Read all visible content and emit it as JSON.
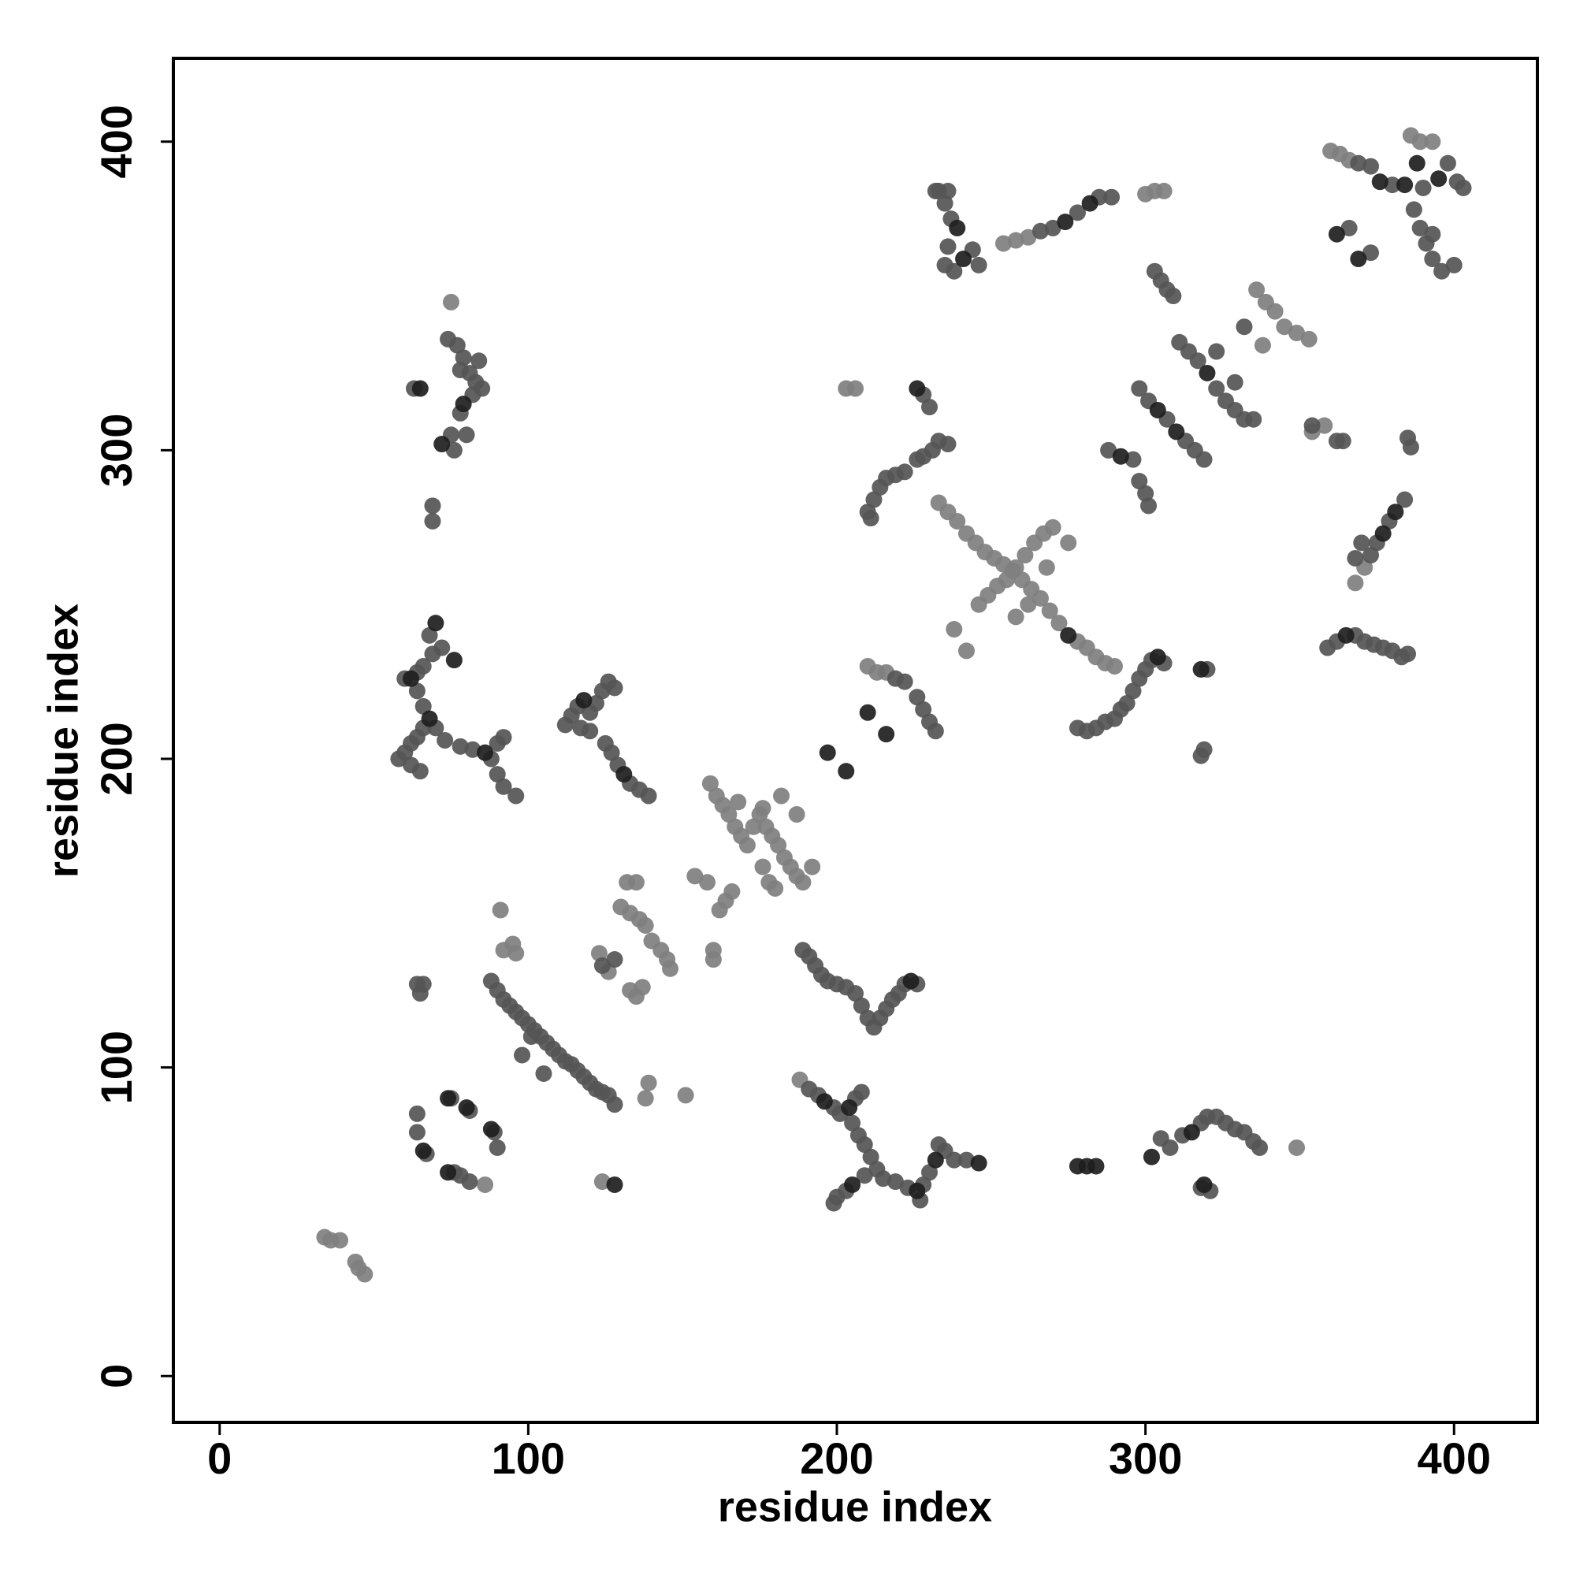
{
  "chart_data": {
    "type": "scatter",
    "xlabel": "residue index",
    "ylabel": "residue index",
    "xlim": [
      -15,
      427
    ],
    "ylim": [
      -15,
      427
    ],
    "xticks": [
      0,
      100,
      200,
      300,
      400
    ],
    "yticks": [
      0,
      100,
      200,
      300,
      400
    ],
    "series": [
      {
        "color": "#7f7f7f",
        "x": [
          34,
          36,
          39,
          44,
          45,
          47,
          132,
          135,
          130,
          133,
          136,
          138,
          140,
          143,
          145,
          146,
          133,
          135,
          137,
          139,
          138,
          151,
          124,
          159,
          161,
          163,
          165,
          167,
          169,
          171,
          173,
          175,
          177,
          179,
          181,
          183,
          185,
          187,
          189,
          192,
          176,
          178,
          180,
          166,
          164,
          162,
          158,
          154,
          160,
          160,
          187,
          182,
          176,
          168,
          233,
          236,
          239,
          242,
          245,
          248,
          251,
          254,
          257,
          260,
          263,
          266,
          269,
          272,
          278,
          281,
          284,
          287,
          290,
          238,
          242,
          246,
          249,
          252,
          255,
          258,
          261,
          264,
          267,
          270,
          275,
          268,
          262,
          258,
          336,
          339,
          342,
          345,
          349,
          353,
          338,
          91,
          92,
          95,
          96,
          203,
          206,
          210,
          213,
          216,
          254,
          258,
          262,
          360,
          363,
          366,
          386,
          389,
          393,
          368,
          371,
          354,
          358,
          86,
          75,
          349,
          300,
          303,
          306,
          188,
          123,
          126
        ],
        "y": [
          45,
          44,
          44,
          37,
          35,
          33,
          160,
          160,
          152,
          150,
          148,
          146,
          141,
          138,
          135,
          132,
          125,
          123,
          126,
          95,
          90,
          91,
          63,
          192,
          188,
          185,
          182,
          178,
          175,
          172,
          178,
          182,
          178,
          175,
          172,
          168,
          165,
          162,
          160,
          165,
          165,
          160,
          158,
          157,
          154,
          151,
          160,
          162,
          135,
          138,
          182,
          188,
          184,
          186,
          283,
          280,
          277,
          273,
          270,
          267,
          265,
          263,
          261,
          258,
          255,
          252,
          248,
          244,
          238,
          236,
          233,
          231,
          230,
          242,
          235,
          250,
          253,
          256,
          258,
          262,
          266,
          270,
          273,
          275,
          270,
          262,
          250,
          246,
          352,
          348,
          345,
          340,
          338,
          336,
          334,
          151,
          138,
          140,
          137,
          320,
          320,
          230,
          228,
          228,
          367,
          368,
          369,
          397,
          396,
          394,
          402,
          400,
          400,
          257,
          262,
          306,
          308,
          62,
          348,
          74,
          383,
          384,
          384,
          96,
          137,
          131
        ]
      },
      {
        "color": "#555555",
        "x": [
          64,
          64,
          67,
          75,
          81,
          89,
          90,
          76,
          78,
          81,
          88,
          90,
          92,
          94,
          96,
          98,
          100,
          102,
          104,
          106,
          108,
          110,
          112,
          114,
          116,
          118,
          120,
          122,
          124,
          126,
          128,
          98,
          105,
          101,
          64,
          65,
          66,
          124,
          128,
          189,
          191,
          193,
          195,
          197,
          200,
          203,
          206,
          208,
          210,
          212,
          214,
          216,
          218,
          220,
          222,
          226,
          191,
          194,
          199,
          201,
          206,
          208,
          205,
          207,
          209,
          211,
          213,
          209,
          203,
          200,
          199,
          215,
          219,
          223,
          228,
          230,
          235,
          238,
          242,
          227,
          233,
          305,
          308,
          312,
          318,
          320,
          323,
          326,
          329,
          332,
          335,
          337,
          321,
          318,
          58,
          60,
          62,
          64,
          66,
          70,
          66,
          64,
          64,
          66,
          69,
          72,
          68,
          60,
          62,
          65,
          73,
          78,
          82,
          88,
          90,
          92,
          90,
          92,
          96,
          112,
          114,
          116,
          120,
          122,
          124,
          126,
          128,
          125,
          127,
          129,
          133,
          136,
          139,
          117,
          120,
          63,
          74,
          77,
          79,
          81,
          83,
          85,
          78,
          75,
          76,
          69,
          69,
          80,
          82,
          78,
          84,
          219,
          222,
          226,
          228,
          230,
          232,
          210,
          212,
          214,
          216,
          219,
          222,
          211,
          228,
          230,
          228,
          231,
          233,
          236,
          226,
          278,
          281,
          284,
          287,
          290,
          292,
          294,
          296,
          298,
          300,
          302,
          306,
          320,
          319,
          318,
          232,
          235,
          237,
          236,
          235,
          238,
          244,
          246,
          233,
          236,
          266,
          270,
          278,
          285,
          289,
          303,
          305,
          307,
          309,
          298,
          301,
          307,
          313,
          316,
          319,
          288,
          296,
          298,
          300,
          301,
          311,
          314,
          317,
          323,
          326,
          329,
          332,
          335,
          323,
          329,
          332,
          362,
          364,
          354,
          369,
          373,
          380,
          398,
          401,
          403,
          390,
          387,
          389,
          391,
          393,
          396,
          400,
          393,
          366,
          373,
          359,
          362,
          368,
          371,
          374,
          377,
          380,
          383,
          385,
          373,
          375,
          379,
          384,
          386,
          385,
          370,
          368
        ],
        "y": [
          85,
          79,
          72,
          90,
          86,
          79,
          74,
          66,
          65,
          63,
          128,
          125,
          122,
          120,
          118,
          116,
          114,
          112,
          110,
          108,
          106,
          104,
          102,
          101,
          99,
          97,
          95,
          93,
          92,
          91,
          88,
          104,
          98,
          110,
          127,
          124,
          127,
          133,
          135,
          138,
          136,
          133,
          130,
          128,
          127,
          126,
          124,
          120,
          116,
          113,
          116,
          119,
          122,
          124,
          127,
          127,
          93,
          91,
          87,
          85,
          90,
          92,
          82,
          78,
          75,
          71,
          67,
          65,
          60,
          58,
          56,
          64,
          63,
          61,
          62,
          66,
          73,
          70,
          70,
          57,
          75,
          77,
          74,
          78,
          82,
          84,
          84,
          82,
          80,
          79,
          76,
          74,
          60,
          61,
          200,
          202,
          205,
          207,
          210,
          210,
          217,
          222,
          228,
          230,
          234,
          236,
          240,
          226,
          198,
          196,
          206,
          204,
          203,
          200,
          205,
          207,
          195,
          191,
          188,
          211,
          214,
          217,
          215,
          218,
          222,
          225,
          223,
          205,
          202,
          198,
          192,
          190,
          188,
          210,
          209,
          320,
          336,
          334,
          330,
          325,
          322,
          320,
          312,
          305,
          300,
          282,
          277,
          305,
          318,
          326,
          329,
          226,
          225,
          220,
          216,
          212,
          209,
          280,
          284,
          288,
          291,
          292,
          293,
          278,
          318,
          314,
          298,
          300,
          303,
          302,
          297,
          210,
          209,
          210,
          212,
          213,
          216,
          218,
          222,
          226,
          229,
          232,
          231,
          229,
          203,
          201,
          384,
          380,
          375,
          366,
          360,
          358,
          365,
          360,
          384,
          384,
          371,
          372,
          377,
          382,
          382,
          358,
          355,
          352,
          350,
          320,
          316,
          310,
          303,
          300,
          297,
          300,
          297,
          290,
          286,
          282,
          335,
          332,
          329,
          320,
          316,
          313,
          310,
          310,
          332,
          322,
          340,
          303,
          303,
          308,
          393,
          392,
          386,
          393,
          387,
          385,
          385,
          378,
          372,
          367,
          362,
          358,
          360,
          370,
          372,
          364,
          236,
          238,
          240,
          238,
          237,
          236,
          235,
          233,
          234,
          266,
          270,
          277,
          284,
          301,
          304,
          270,
          265
        ]
      },
      {
        "color": "#1e1e1e",
        "x": [
          66,
          74,
          80,
          88,
          74,
          62,
          76,
          70,
          86,
          118,
          131,
          65,
          72,
          128,
          197,
          203,
          210,
          216,
          226,
          196,
          204,
          205,
          226,
          232,
          246,
          224,
          278,
          281,
          284,
          302,
          315,
          319,
          275,
          304,
          318,
          239,
          241,
          274,
          282,
          304,
          310,
          292,
          320,
          376,
          384,
          395,
          388,
          362,
          369,
          365,
          377,
          381,
          68,
          79
        ],
        "y": [
          73,
          90,
          87,
          80,
          66,
          226,
          232,
          244,
          202,
          219,
          195,
          320,
          302,
          62,
          202,
          196,
          215,
          208,
          320,
          89,
          87,
          62,
          60,
          70,
          69,
          128,
          68,
          68,
          68,
          71,
          79,
          62,
          240,
          233,
          229,
          372,
          362,
          374,
          380,
          313,
          306,
          298,
          325,
          387,
          386,
          388,
          393,
          370,
          362,
          240,
          273,
          280,
          213,
          315
        ]
      }
    ]
  }
}
